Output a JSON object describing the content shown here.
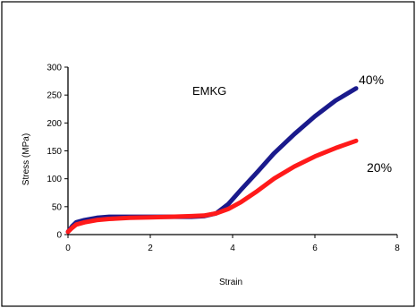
{
  "chart_data": {
    "type": "line",
    "title": "",
    "annotation": "EMKG",
    "xlabel": "Strain",
    "ylabel": "Stress (MPa)",
    "xlim": [
      0,
      8
    ],
    "ylim": [
      0,
      300
    ],
    "x_ticks": [
      0,
      2,
      4,
      6,
      8
    ],
    "x_tick_labels": [
      "0",
      "2",
      "4",
      "6",
      "8"
    ],
    "y_ticks": [
      0,
      50,
      100,
      150,
      200,
      250,
      300
    ],
    "y_tick_labels": [
      "0",
      "50",
      "100",
      "150",
      "200",
      "250",
      "300"
    ],
    "grid": false,
    "legend": "none",
    "series": [
      {
        "name": "40%",
        "color": "#1a1a8c",
        "x": [
          0.0,
          0.1,
          0.2,
          0.4,
          0.7,
          1.0,
          1.5,
          2.0,
          2.5,
          3.0,
          3.3,
          3.6,
          3.9,
          4.2,
          4.6,
          5.0,
          5.5,
          6.0,
          6.5,
          7.0
        ],
        "y": [
          5,
          15,
          22,
          26,
          30,
          32,
          32,
          32,
          32,
          32,
          33,
          38,
          55,
          80,
          112,
          145,
          180,
          212,
          240,
          262
        ]
      },
      {
        "name": "20%",
        "color": "#ff1a1a",
        "x": [
          0.0,
          0.1,
          0.2,
          0.4,
          0.7,
          1.0,
          1.5,
          2.0,
          2.5,
          3.0,
          3.3,
          3.6,
          3.9,
          4.2,
          4.6,
          5.0,
          5.5,
          6.0,
          6.5,
          7.0
        ],
        "y": [
          5,
          12,
          18,
          22,
          26,
          28,
          30,
          31,
          32,
          33,
          34,
          38,
          46,
          58,
          78,
          100,
          122,
          140,
          155,
          168
        ]
      }
    ]
  }
}
